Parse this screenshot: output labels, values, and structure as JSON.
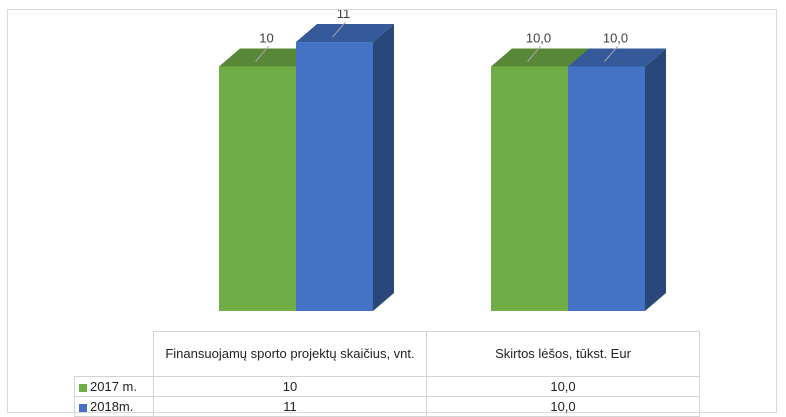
{
  "chart_data": {
    "type": "bar",
    "categories": [
      "Finansuojamų sporto projektų skaičius, vnt.",
      "Skirtos lėšos, tūkst. Eur"
    ],
    "series": [
      {
        "name": "2017 m.",
        "values": [
          10,
          10.0
        ],
        "labels": [
          "10",
          "10,0"
        ],
        "color": "#70ad47"
      },
      {
        "name": "2018m.",
        "values": [
          11,
          10.0
        ],
        "labels": [
          "11",
          "10,0"
        ],
        "color": "#4472c4"
      }
    ],
    "ylim": [
      0,
      11
    ],
    "grid": false,
    "legend": "data-table",
    "table": {
      "rows": [
        {
          "series": "2017 m.",
          "cells": [
            "10",
            "10,0"
          ]
        },
        {
          "series": "2018m.",
          "cells": [
            "11",
            "10,0"
          ]
        }
      ]
    }
  }
}
